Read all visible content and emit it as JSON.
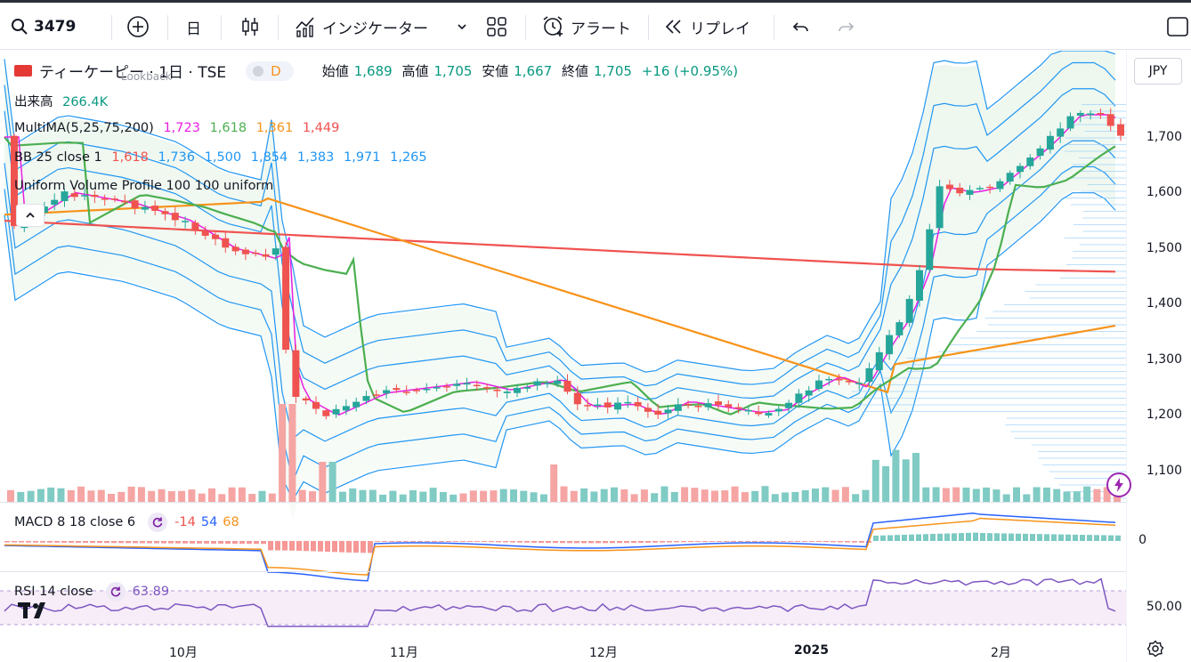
{
  "toolbar": {
    "symbol": "3479",
    "interval": "日",
    "indicators_label": "インジケーター",
    "alert_label": "アラート",
    "replay_label": "リプレイ"
  },
  "legend": {
    "symbol_name": "ティーケーピー · 1日 · TSE",
    "badge": "D",
    "lookback": "Lookback",
    "open_label": "始値",
    "open": "1,689",
    "high_label": "高値",
    "high": "1,705",
    "low_label": "安値",
    "low": "1,667",
    "close_label": "終値",
    "close": "1,705",
    "change": "+16 (+0.95%)",
    "volume_label": "出来高",
    "volume": "266.4K",
    "ma_label": "MultiMA(5,25,75,200)",
    "ma5": "1,723",
    "ma25": "1,618",
    "ma75": "1,361",
    "ma200": "1,449",
    "bb_label": "BB 25 close 1",
    "bb_vals": [
      "1,618",
      "1,736",
      "1,500",
      "1,854",
      "1,383",
      "1,971",
      "1,265"
    ],
    "vp_label": "Uniform Volume Profile 100 100 uniform",
    "macd_label": "MACD 8 18 close 6",
    "macd_hist": "-14",
    "macd_line": "54",
    "macd_signal": "68",
    "rsi_label": "RSI 14 close",
    "rsi": "63.89"
  },
  "currency": "JPY",
  "price_axis": [
    "1,700",
    "1,600",
    "1,500",
    "1,400",
    "1,300",
    "1,200",
    "1,100"
  ],
  "macd_axis": "0",
  "rsi_axis": "50.00",
  "time_axis": [
    "10月",
    "11月",
    "12月",
    "2025",
    "2月"
  ],
  "colors": {
    "up": "#26a69a",
    "down": "#ef5350",
    "ma5": "#e91ee3",
    "ma25": "#4caf50",
    "ma75": "#f7931a",
    "ma200": "#f0524f",
    "bb": "#2196f3"
  }
}
